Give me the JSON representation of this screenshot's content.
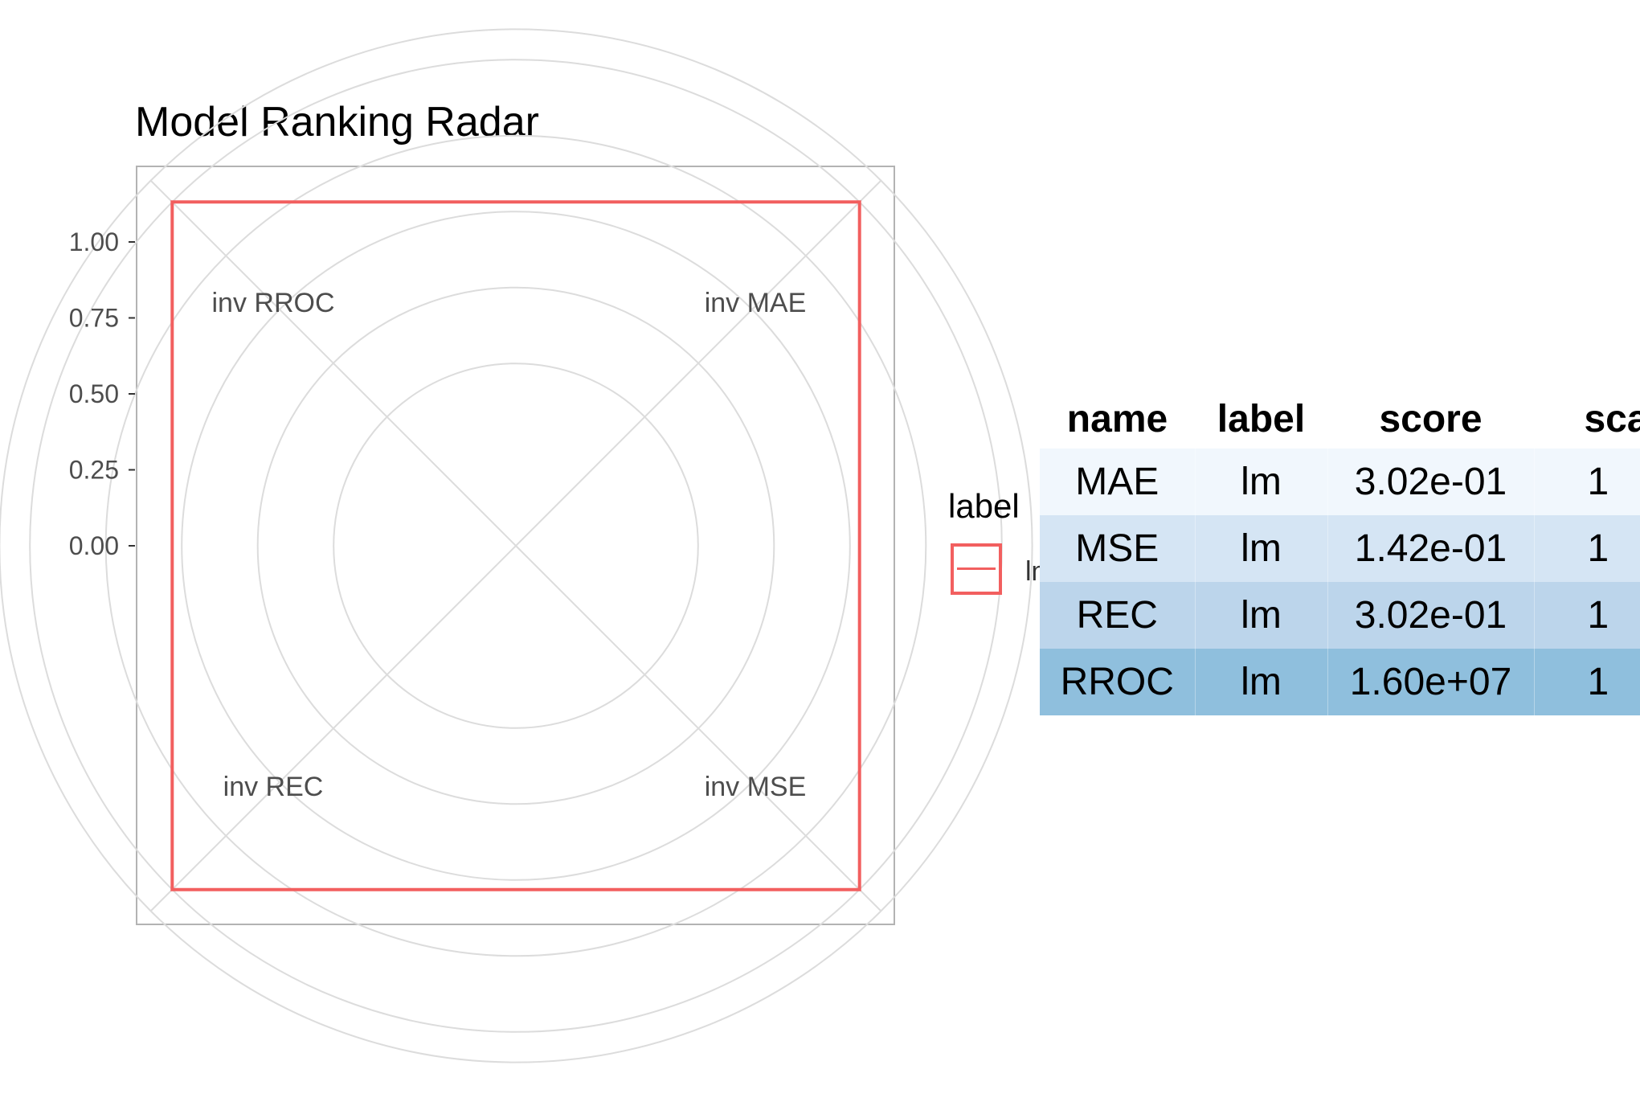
{
  "chart_data": [
    {
      "type": "radar",
      "title": "Model Ranking Radar",
      "axes": [
        "inv MAE",
        "inv MSE",
        "inv REC",
        "inv RROC"
      ],
      "radial_ticks": [
        "1.00",
        "0.75",
        "0.50",
        "0.25",
        "0.00"
      ],
      "radial_tick_values": [
        1.0,
        0.75,
        0.5,
        0.25,
        0.0
      ],
      "rlim": [
        -0.6,
        1.1
      ],
      "series": [
        {
          "name": "lm",
          "values": [
            1.0,
            1.0,
            1.0,
            1.0
          ],
          "color": "#f25f5f"
        }
      ],
      "legend": {
        "title": "label",
        "entries": [
          "lm"
        ],
        "position": "right"
      },
      "grid": true
    },
    {
      "type": "table",
      "columns": [
        "name",
        "label",
        "score",
        "scale"
      ],
      "rows": [
        {
          "name": "MAE",
          "label": "lm",
          "score": "3.02e-01",
          "scale": "1"
        },
        {
          "name": "MSE",
          "label": "lm",
          "score": "1.42e-01",
          "scale": "1"
        },
        {
          "name": "REC",
          "label": "lm",
          "score": "3.02e-01",
          "scale": "1"
        },
        {
          "name": "RROC",
          "label": "lm",
          "score": "1.60e+07",
          "scale": "1"
        }
      ],
      "row_colors": [
        "#f1f7fd",
        "#d5e5f4",
        "#bcd5eb",
        "#8fbfdd"
      ]
    }
  ]
}
